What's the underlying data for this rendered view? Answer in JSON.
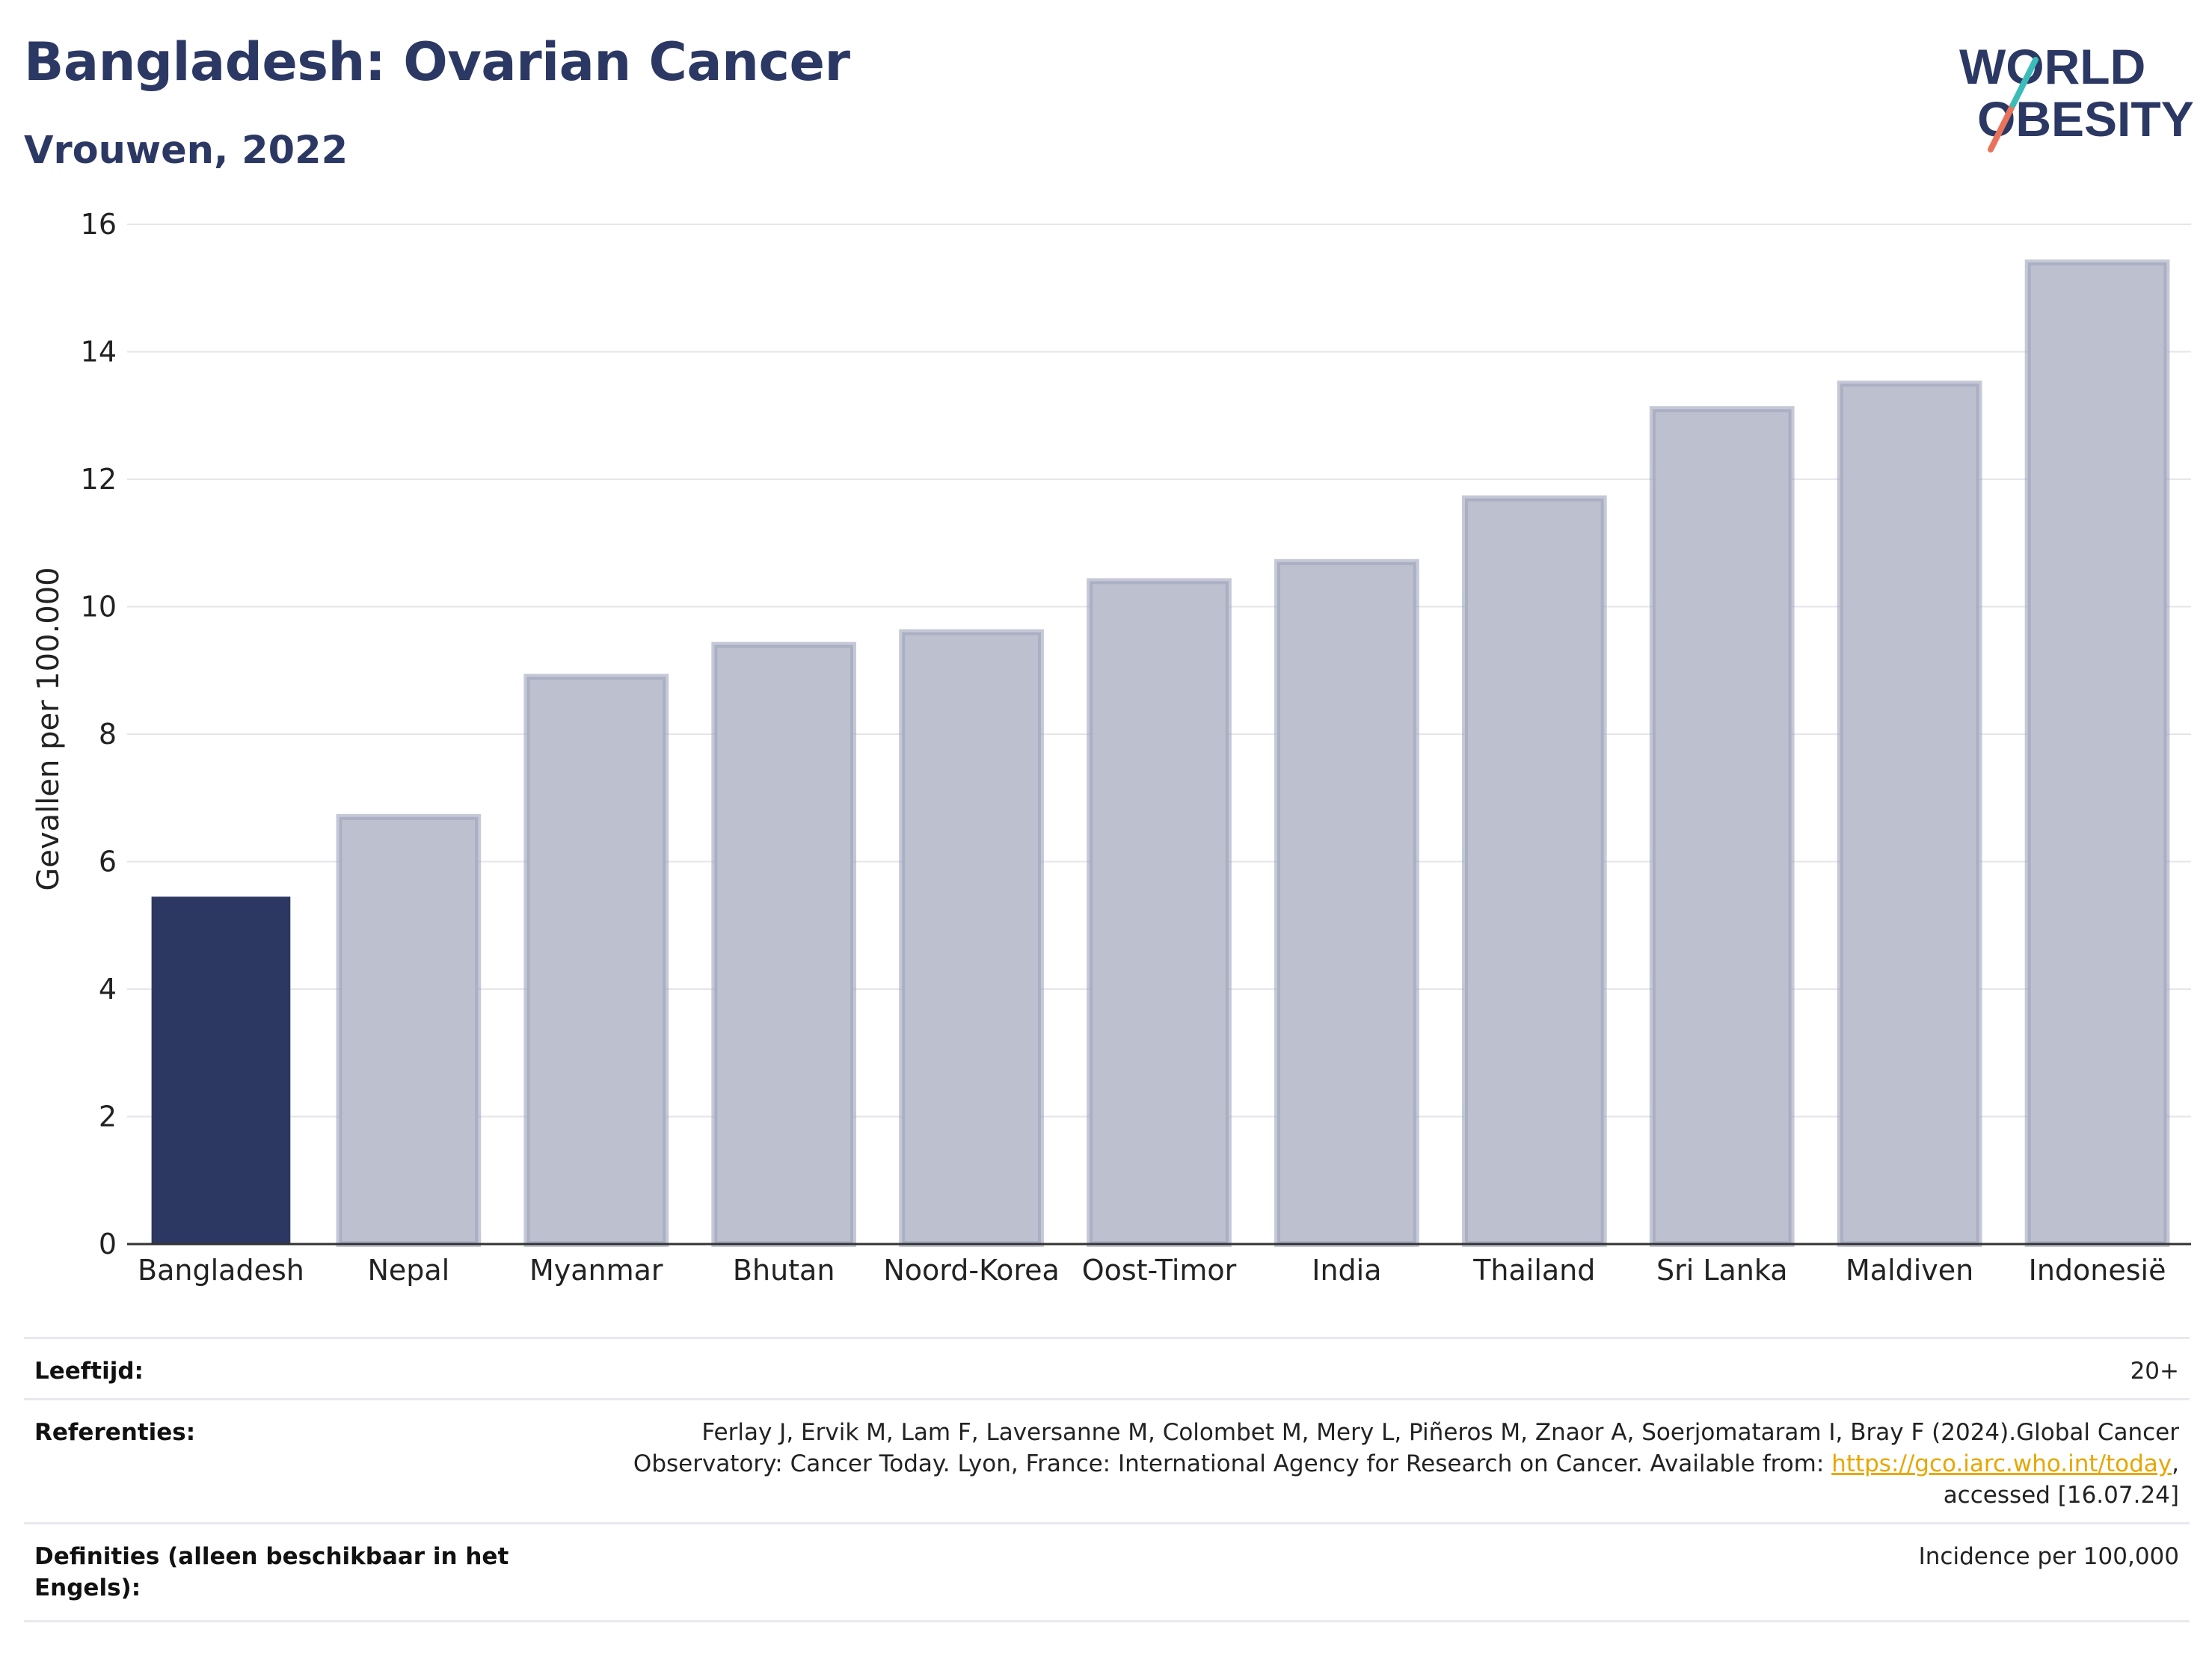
{
  "title": "Bangladesh: Ovarian Cancer",
  "subtitle": "Vrouwen, 2022",
  "logo": {
    "line1": "WORLD",
    "line2": "OBESITY"
  },
  "colors": {
    "highlight": "#2c3862",
    "other": "#bdc1cf",
    "other_stroke": "#9ea4ba",
    "title": "#2c3864",
    "link": "#e8a600"
  },
  "chart_data": {
    "type": "bar",
    "categories": [
      "Bangladesh",
      "Nepal",
      "Myanmar",
      "Bhutan",
      "Noord-Korea",
      "Oost-Timor",
      "India",
      "Thailand",
      "Sri Lanka",
      "Maldiven",
      "Indonesië"
    ],
    "values": [
      5.45,
      6.7,
      8.9,
      9.4,
      9.6,
      10.4,
      10.7,
      11.7,
      13.1,
      13.5,
      15.4
    ],
    "highlight": "Bangladesh",
    "ylabel": "Gevallen per 100.000",
    "ylim": [
      0,
      16
    ],
    "yticks": [
      "0",
      "2",
      "4",
      "6",
      "8",
      "10",
      "12",
      "14",
      "16"
    ],
    "grid": true
  },
  "footer": {
    "age_label": "Leeftijd:",
    "age_value": "20+",
    "ref_label": "Referenties:",
    "ref_line1": "Ferlay J, Ervik M, Lam F, Laversanne M, Colombet M, Mery L, Piñeros M, Znaor A, Soerjomataram I, Bray F (2024).Global Cancer",
    "ref_line2_pre": "Observatory: Cancer Today. Lyon, France: International Agency for Research on Cancer. Available from: ",
    "ref_link": "https://gco.iarc.who.int/today",
    "ref_line2_post": ",",
    "ref_line3": "accessed [16.07.24]",
    "def_label": "Definities (alleen beschikbaar in het Engels):",
    "def_value": "Incidence per 100,000"
  }
}
